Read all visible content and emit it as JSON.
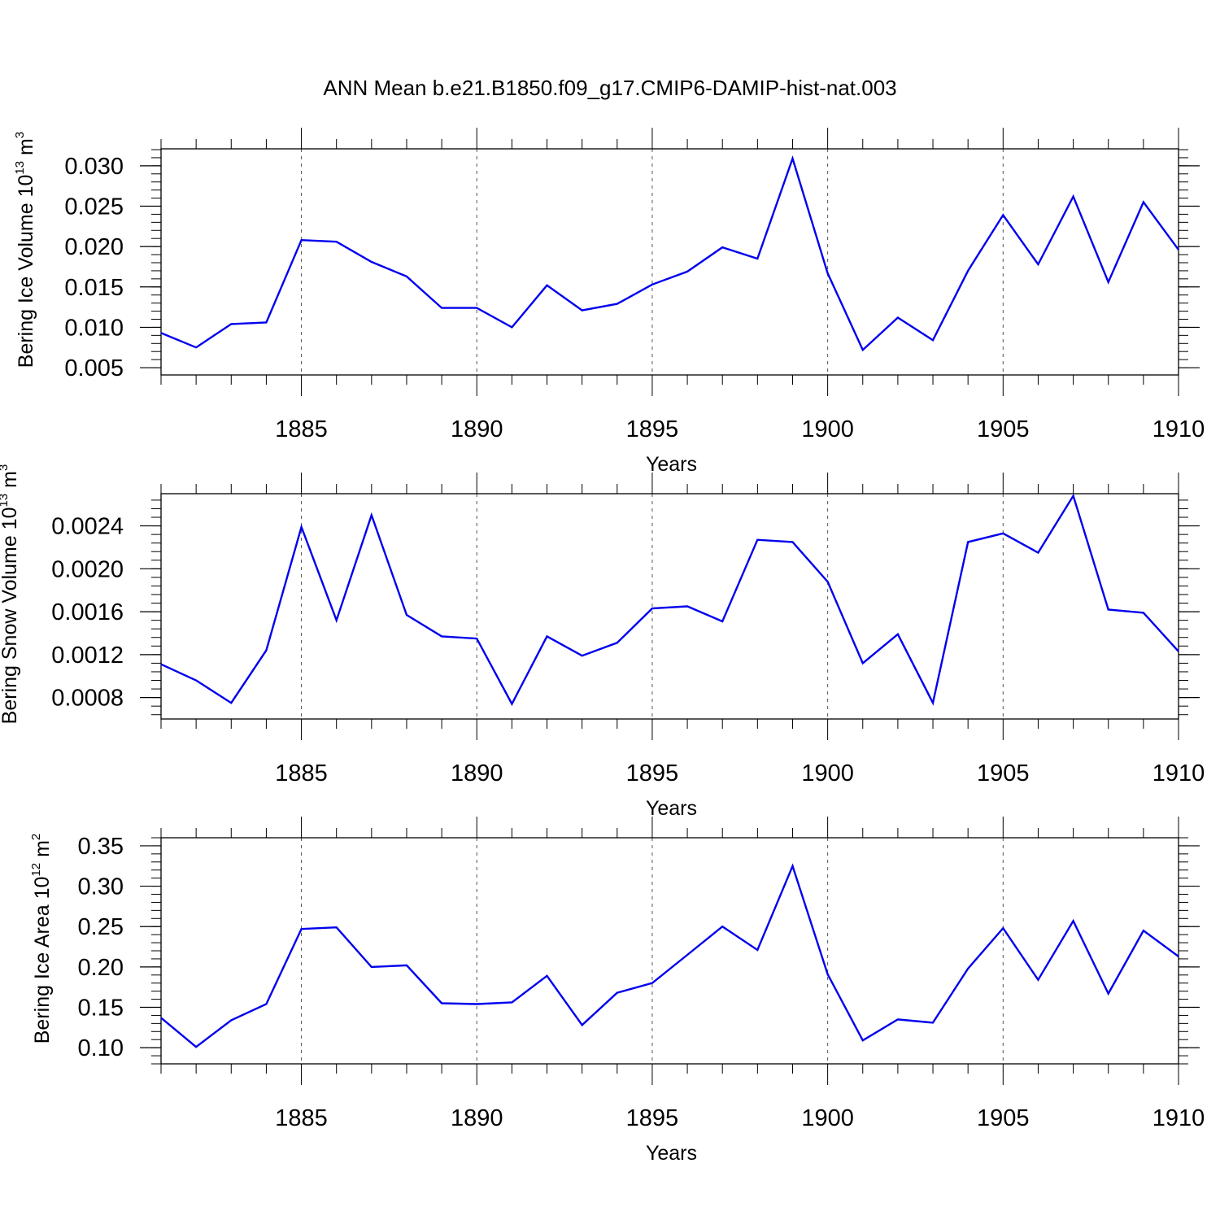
{
  "figure": {
    "title": "ANN Mean b.e21.B1850.f09_g17.CMIP6-DAMIP-hist-nat.003"
  },
  "chart_data": [
    {
      "type": "line",
      "ylabel": {
        "text": "Bering Ice Volume 10",
        "exp": "13",
        "unit": " m",
        "unit_exp": "3"
      },
      "xlabel": "Years",
      "xlim": [
        1881,
        1910
      ],
      "ylim": [
        0.0041,
        0.0321
      ],
      "yticks": [
        0.005,
        0.01,
        0.015,
        0.02,
        0.025,
        0.03
      ],
      "ytick_labels": [
        "0.005",
        "0.010",
        "0.015",
        "0.020",
        "0.025",
        "0.030"
      ],
      "xticks": [
        1885,
        1890,
        1895,
        1900,
        1905,
        1910
      ],
      "xtick_labels": [
        "1885",
        "1890",
        "1895",
        "1900",
        "1905",
        "1910"
      ],
      "grid": "x-dashed",
      "line_color": "#0000ee",
      "x": [
        1881,
        1882,
        1883,
        1884,
        1885,
        1886,
        1887,
        1888,
        1889,
        1890,
        1891,
        1892,
        1893,
        1894,
        1895,
        1896,
        1897,
        1898,
        1899,
        1900,
        1901,
        1902,
        1903,
        1904,
        1905,
        1906,
        1907,
        1908,
        1909,
        1910
      ],
      "values": [
        0.0093,
        0.0075,
        0.0104,
        0.0106,
        0.0208,
        0.0206,
        0.0181,
        0.0163,
        0.0124,
        0.0124,
        0.01,
        0.0152,
        0.0121,
        0.0129,
        0.0153,
        0.0169,
        0.0199,
        0.0185,
        0.0309,
        0.0167,
        0.0072,
        0.0112,
        0.0084,
        0.017,
        0.0239,
        0.0178,
        0.0262,
        0.0156,
        0.0255,
        0.0196
      ]
    },
    {
      "type": "line",
      "ylabel": {
        "text": "Bering Snow Volume 10",
        "exp": "13",
        "unit": " m",
        "unit_exp": "3"
      },
      "xlabel": "Years",
      "xlim": [
        1881,
        1910
      ],
      "ylim": [
        0.0006,
        0.0027
      ],
      "yticks": [
        0.0008,
        0.0012,
        0.0016,
        0.002,
        0.0024
      ],
      "ytick_labels": [
        "0.0008",
        "0.0012",
        "0.0016",
        "0.0020",
        "0.0024"
      ],
      "xticks": [
        1885,
        1890,
        1895,
        1900,
        1905,
        1910
      ],
      "xtick_labels": [
        "1885",
        "1890",
        "1895",
        "1900",
        "1905",
        "1910"
      ],
      "grid": "x-dashed",
      "line_color": "#0000ee",
      "x": [
        1881,
        1882,
        1883,
        1884,
        1885,
        1886,
        1887,
        1888,
        1889,
        1890,
        1891,
        1892,
        1893,
        1894,
        1895,
        1896,
        1897,
        1898,
        1899,
        1900,
        1901,
        1902,
        1903,
        1904,
        1905,
        1906,
        1907,
        1908,
        1909,
        1910
      ],
      "values": [
        0.00111,
        0.00096,
        0.00075,
        0.00124,
        0.00239,
        0.00152,
        0.0025,
        0.00157,
        0.00137,
        0.00135,
        0.00074,
        0.00137,
        0.00119,
        0.00131,
        0.00163,
        0.00165,
        0.00151,
        0.00227,
        0.00225,
        0.00188,
        0.00112,
        0.00139,
        0.00075,
        0.00225,
        0.00233,
        0.00215,
        0.00268,
        0.00162,
        0.00159,
        0.00123
      ]
    },
    {
      "type": "line",
      "ylabel": {
        "text": "Bering Ice Area 10",
        "exp": "12",
        "unit": " m",
        "unit_exp": "2"
      },
      "xlabel": "Years",
      "xlim": [
        1881,
        1910
      ],
      "ylim": [
        0.08,
        0.36
      ],
      "yticks": [
        0.1,
        0.15,
        0.2,
        0.25,
        0.3,
        0.35
      ],
      "ytick_labels": [
        "0.10",
        "0.15",
        "0.20",
        "0.25",
        "0.30",
        "0.35"
      ],
      "xticks": [
        1885,
        1890,
        1895,
        1900,
        1905,
        1910
      ],
      "xtick_labels": [
        "1885",
        "1890",
        "1895",
        "1900",
        "1905",
        "1910"
      ],
      "grid": "x-dashed",
      "line_color": "#0000ee",
      "x": [
        1881,
        1882,
        1883,
        1884,
        1885,
        1886,
        1887,
        1888,
        1889,
        1890,
        1891,
        1892,
        1893,
        1894,
        1895,
        1896,
        1897,
        1898,
        1899,
        1900,
        1901,
        1902,
        1903,
        1904,
        1905,
        1906,
        1907,
        1908,
        1909,
        1910
      ],
      "values": [
        0.137,
        0.101,
        0.134,
        0.154,
        0.247,
        0.249,
        0.2,
        0.202,
        0.155,
        0.154,
        0.156,
        0.189,
        0.128,
        0.168,
        0.18,
        0.215,
        0.25,
        0.221,
        0.325,
        0.191,
        0.109,
        0.135,
        0.131,
        0.198,
        0.248,
        0.184,
        0.257,
        0.167,
        0.245,
        0.213
      ]
    }
  ]
}
